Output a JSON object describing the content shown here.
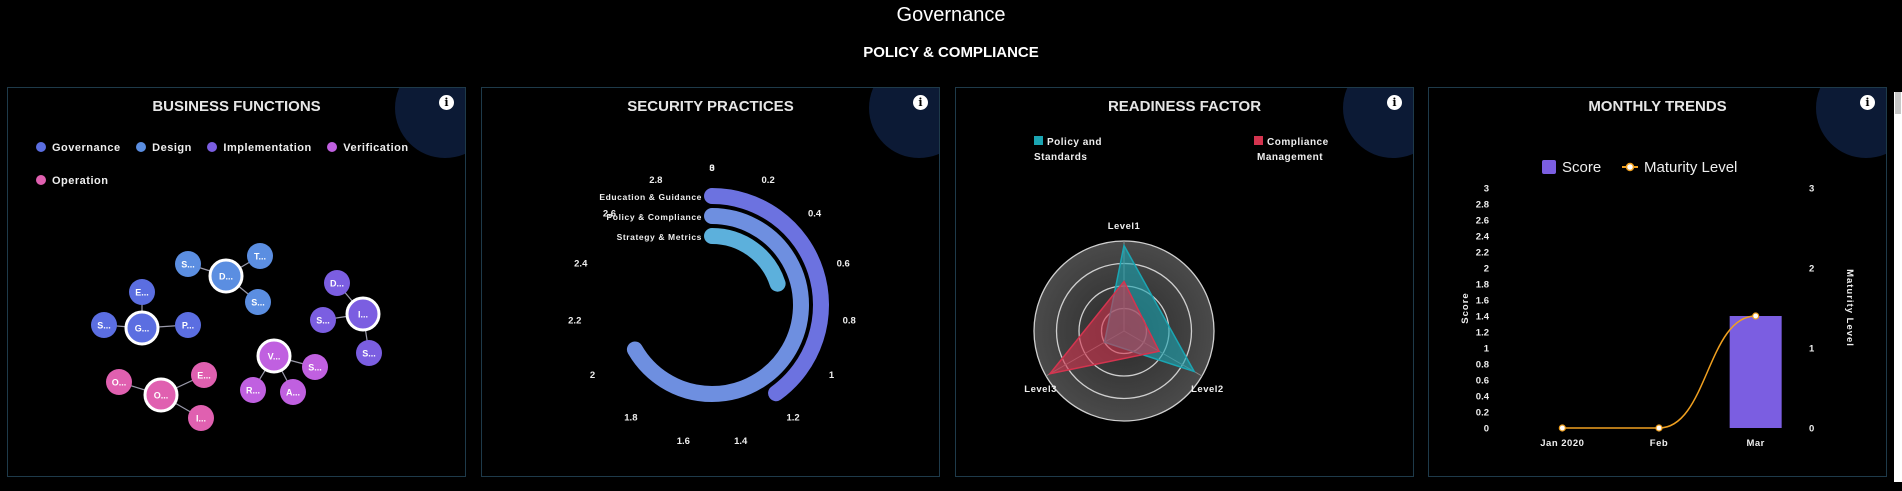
{
  "page": {
    "title": "Governance",
    "subtitle": "POLICY & COMPLIANCE",
    "info_symbol": "i"
  },
  "panels": {
    "business_functions": {
      "title": "BUSINESS FUNCTIONS",
      "legend": [
        {
          "label": "Governance",
          "color": "#5b6ee1"
        },
        {
          "label": "Design",
          "color": "#5b8ee1"
        },
        {
          "label": "Implementation",
          "color": "#7b5ee1"
        },
        {
          "label": "Verification",
          "color": "#c060e0"
        },
        {
          "label": "Operation",
          "color": "#e060b0"
        }
      ],
      "clusters": [
        {
          "name": "governance",
          "color": "#5b6ee1",
          "center_label": "G...",
          "children": [
            "E...",
            "S...",
            "P..."
          ]
        },
        {
          "name": "design",
          "color": "#5b8ee1",
          "center_label": "D...",
          "children": [
            "S...",
            "T...",
            "S..."
          ]
        },
        {
          "name": "implementation",
          "color": "#7b5ee1",
          "center_label": "I...",
          "children": [
            "D...",
            "S...",
            "S..."
          ]
        },
        {
          "name": "verification",
          "color": "#c060e0",
          "center_label": "V...",
          "children": [
            "S...",
            "R...",
            "A..."
          ]
        },
        {
          "name": "operation",
          "color": "#e060b0",
          "center_label": "O...",
          "children": [
            "O...",
            "E...",
            "I..."
          ]
        }
      ]
    },
    "security_practices": {
      "title": "SECURITY PRACTICES",
      "chart_data": {
        "type": "bar",
        "orientation": "radial",
        "categories": [
          "Education & Guidance",
          "Policy & Compliance",
          "Strategy & Metrics"
        ],
        "values": [
          1.2,
          2.0,
          0.6
        ],
        "colors": [
          "#6c72e0",
          "#6e8fe0",
          "#5cb0dc"
        ],
        "axis_range": [
          0,
          3
        ],
        "tick_labels": [
          "0",
          "0.2",
          "0.4",
          "0.6",
          "0.8",
          "1",
          "1.2",
          "1.4",
          "1.6",
          "1.8",
          "2",
          "2.2",
          "2.4",
          "2.6",
          "2.8",
          "3"
        ]
      }
    },
    "readiness_factor": {
      "title": "READINESS FACTOR",
      "chart_data": {
        "type": "radar",
        "indicators": [
          "Level1",
          "Level2",
          "Level3"
        ],
        "legend": [
          {
            "label_lines": [
              "Policy and",
              "Standards"
            ],
            "color": "#1ba5b2"
          },
          {
            "label_lines": [
              "Compliance",
              "Management"
            ],
            "color": "#d4344f"
          }
        ],
        "max": 1,
        "series": [
          {
            "name": "Policy and Standards",
            "values": [
              0.95,
              0.9,
              0.25
            ],
            "color": "#1ba5b2"
          },
          {
            "name": "Compliance Management",
            "values": [
              0.55,
              0.45,
              0.95
            ],
            "color": "#d4344f"
          }
        ],
        "rings": 4
      }
    },
    "monthly_trends": {
      "title": "MONTHLY TRENDS",
      "chart_data": {
        "type": "bar",
        "categories": [
          "Jan 2020",
          "Feb",
          "Mar"
        ],
        "series": [
          {
            "name": "Score",
            "type": "bar",
            "values": [
              0,
              0,
              1.4
            ],
            "color": "#7b5ee1"
          },
          {
            "name": "Maturity Level",
            "type": "line",
            "values": [
              0,
              0,
              1.4
            ],
            "color": "#f0a020"
          }
        ],
        "ylabel_left": "Score",
        "ylabel_right": "Maturity Level",
        "ylim_left": [
          0,
          3
        ],
        "ylim_right": [
          0,
          3
        ],
        "left_ticks": [
          "0",
          "0.2",
          "0.4",
          "0.6",
          "0.8",
          "1",
          "1.2",
          "1.4",
          "1.6",
          "1.8",
          "2",
          "2.2",
          "2.4",
          "2.6",
          "2.8",
          "3"
        ],
        "right_ticks": [
          "0",
          "1",
          "2",
          "3"
        ]
      }
    }
  }
}
